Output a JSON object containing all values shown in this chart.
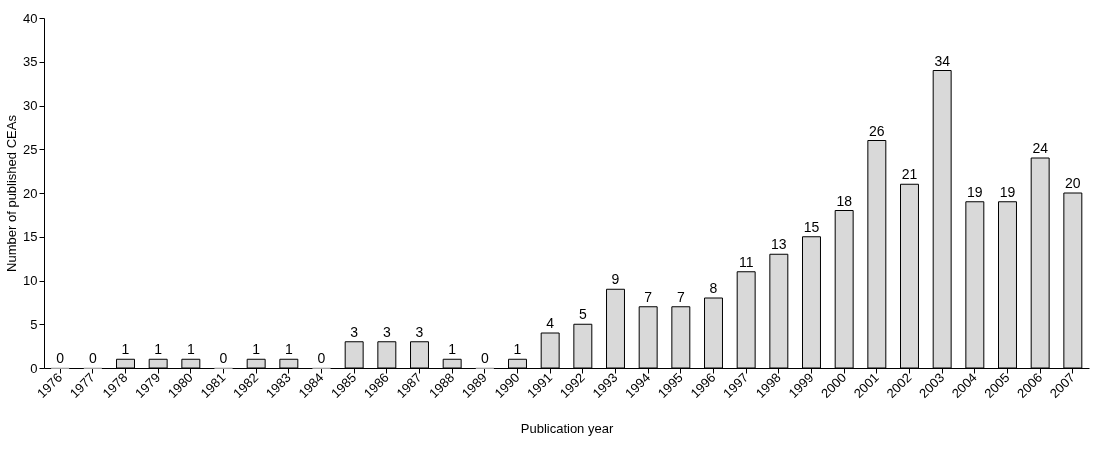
{
  "chart_data": {
    "type": "bar",
    "xlabel": "Publication year",
    "ylabel": "Number of published CEAs",
    "categories": [
      "1976",
      "1977",
      "1978",
      "1979",
      "1980",
      "1981",
      "1982",
      "1983",
      "1984",
      "1985",
      "1986",
      "1987",
      "1988",
      "1989",
      "1990",
      "1991",
      "1992",
      "1993",
      "1994",
      "1995",
      "1996",
      "1997",
      "1998",
      "1999",
      "2000",
      "2001",
      "2002",
      "2003",
      "2004",
      "2005",
      "2006",
      "2007"
    ],
    "values": [
      0,
      0,
      1,
      1,
      1,
      0,
      1,
      1,
      0,
      3,
      3,
      3,
      1,
      0,
      1,
      4,
      5,
      9,
      7,
      7,
      8,
      11,
      13,
      15,
      18,
      26,
      21,
      34,
      19,
      19,
      24,
      20
    ],
    "color": "#d9d9d9",
    "ylim": [
      0,
      40
    ],
    "yticks": [
      0,
      5,
      10,
      15,
      20,
      25,
      30,
      35,
      40
    ],
    "grid": false,
    "data_labels": true
  }
}
